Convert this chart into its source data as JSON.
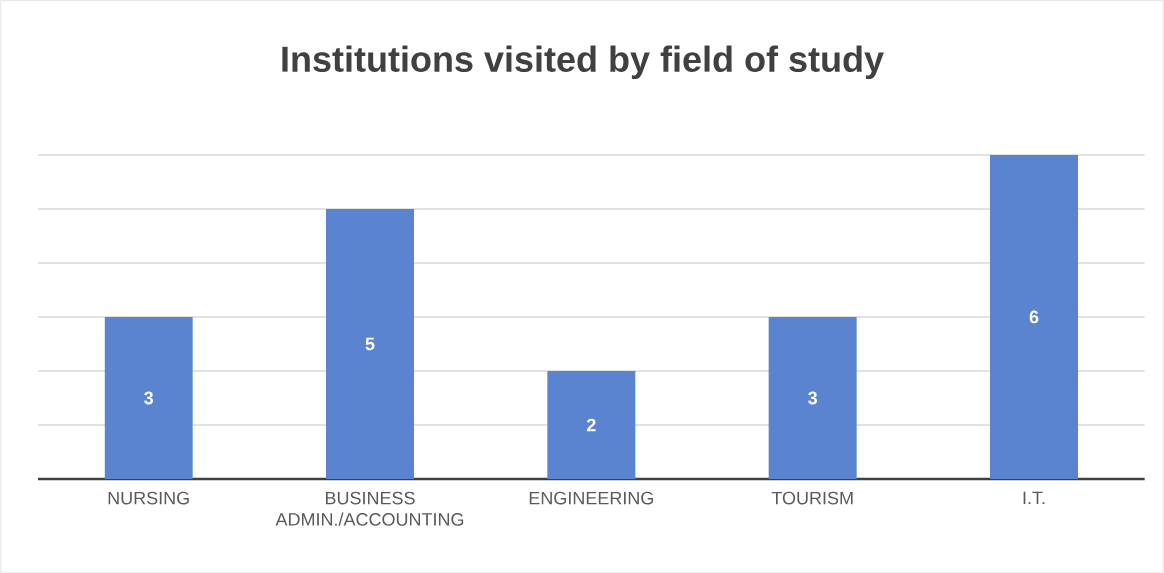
{
  "chart_data": {
    "type": "bar",
    "title": "Institutions visited by field of study",
    "categories": [
      "NURSING",
      "BUSINESS ADMIN./ACCOUNTING",
      "ENGINEERING",
      "TOURISM",
      "I.T."
    ],
    "values": [
      3,
      5,
      2,
      3,
      6
    ],
    "color": "#5b84d0",
    "ylim": [
      0,
      6
    ],
    "yticks": [
      {
        "value": 0,
        "label": null
      },
      {
        "value": 1,
        "label": null
      },
      {
        "value": 2,
        "label": null
      },
      {
        "value": 3,
        "label": null
      },
      {
        "value": 4,
        "label": null
      },
      {
        "value": 5,
        "label": null
      },
      {
        "value": 6,
        "label": null
      }
    ],
    "grid": "y",
    "data_labels": true,
    "tick_labels": "x"
  }
}
